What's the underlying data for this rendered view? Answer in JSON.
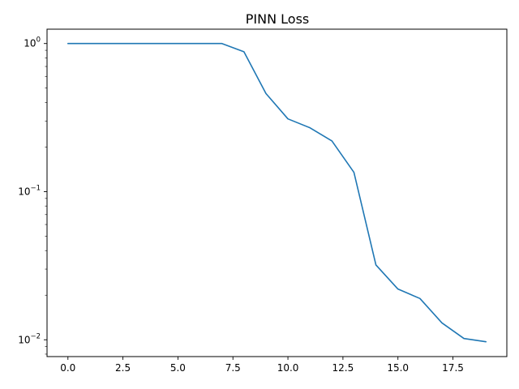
{
  "chart_data": {
    "type": "line",
    "title": "PINN Loss",
    "xlabel": "",
    "ylabel": "",
    "yscale": "log",
    "xlim": [
      -0.95,
      19.95
    ],
    "ylim": [
      0.0077,
      1.25
    ],
    "grid": false,
    "colors": {
      "line": "#1f77b4",
      "axes": "#000000",
      "background": "#ffffff"
    },
    "x_ticks": [
      {
        "value": 0.0,
        "label": "0.0"
      },
      {
        "value": 2.5,
        "label": "2.5"
      },
      {
        "value": 5.0,
        "label": "5.0"
      },
      {
        "value": 7.5,
        "label": "7.5"
      },
      {
        "value": 10.0,
        "label": "10.0"
      },
      {
        "value": 12.5,
        "label": "12.5"
      },
      {
        "value": 15.0,
        "label": "15.0"
      },
      {
        "value": 17.5,
        "label": "17.5"
      }
    ],
    "y_ticks": [
      {
        "value": 1,
        "base": "10",
        "exponent": "0"
      },
      {
        "value": 0.1,
        "base": "10",
        "exponent": "−1"
      },
      {
        "value": 0.01,
        "base": "10",
        "exponent": "−2"
      }
    ],
    "series": [
      {
        "x": [
          0,
          1,
          2,
          3,
          4,
          5,
          6,
          7,
          8,
          9,
          10,
          11,
          12,
          13,
          14,
          15,
          16,
          17,
          18,
          19
        ],
        "y": [
          1.0,
          1.0,
          1.0,
          1.0,
          1.0,
          1.0,
          1.0,
          1.0,
          0.88,
          0.46,
          0.31,
          0.27,
          0.22,
          0.135,
          0.032,
          0.022,
          0.019,
          0.013,
          0.0102,
          0.0097
        ]
      }
    ]
  }
}
